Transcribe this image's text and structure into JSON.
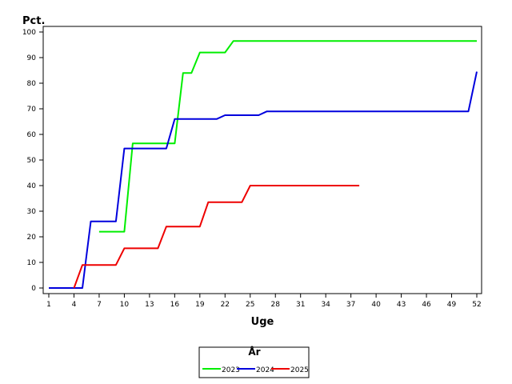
{
  "chart_data": {
    "type": "line",
    "title": "",
    "xlabel": "Uge",
    "ylabel": "Pct.",
    "xlim": [
      1,
      52
    ],
    "ylim": [
      0,
      100
    ],
    "x_ticks": [
      1,
      4,
      7,
      10,
      13,
      16,
      19,
      22,
      25,
      28,
      31,
      34,
      37,
      40,
      43,
      46,
      49,
      52
    ],
    "y_ticks": [
      0,
      10,
      20,
      30,
      40,
      50,
      60,
      70,
      80,
      90,
      100
    ],
    "grid": false,
    "legend": {
      "title": "År",
      "placement": "bottom-center"
    },
    "series": [
      {
        "name": "2023",
        "color": "#00ee00",
        "points": [
          [
            7,
            22
          ],
          [
            10,
            22
          ],
          [
            11,
            56.5
          ],
          [
            16,
            56.5
          ],
          [
            17,
            84
          ],
          [
            18,
            84
          ],
          [
            19,
            92
          ],
          [
            22,
            92
          ],
          [
            23,
            96.5
          ],
          [
            52,
            96.5
          ]
        ]
      },
      {
        "name": "2024",
        "color": "#0000dd",
        "points": [
          [
            1,
            0
          ],
          [
            5,
            0
          ],
          [
            6,
            26
          ],
          [
            9,
            26
          ],
          [
            10,
            54.5
          ],
          [
            15,
            54.5
          ],
          [
            16,
            66
          ],
          [
            21,
            66
          ],
          [
            22,
            67.5
          ],
          [
            26,
            67.5
          ],
          [
            27,
            69
          ],
          [
            51,
            69
          ],
          [
            52,
            84.5
          ]
        ]
      },
      {
        "name": "2025",
        "color": "#ee0000",
        "points": [
          [
            4,
            0
          ],
          [
            5,
            9
          ],
          [
            9,
            9
          ],
          [
            10,
            15.5
          ],
          [
            14,
            15.5
          ],
          [
            15,
            24
          ],
          [
            19,
            24
          ],
          [
            20,
            33.5
          ],
          [
            24,
            33.5
          ],
          [
            25,
            40
          ],
          [
            38,
            40
          ]
        ]
      }
    ]
  }
}
